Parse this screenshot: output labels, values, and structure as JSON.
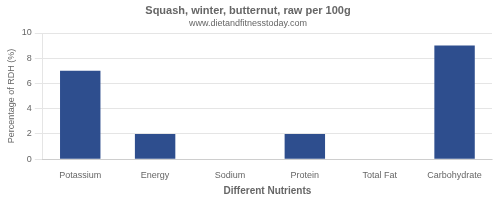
{
  "chart_data": {
    "type": "bar",
    "title": "Squash, winter, butternut, raw per 100g",
    "subtitle": "www.dietandfitnesstoday.com",
    "xlabel": "Different Nutrients",
    "ylabel": "Percentage of RDH (%)",
    "categories": [
      "Potassium",
      "Energy",
      "Sodium",
      "Protein",
      "Total Fat",
      "Carbohydrate"
    ],
    "values": [
      7,
      2,
      0,
      2,
      0,
      9
    ],
    "color": "#2e4e8e",
    "ylim": [
      0,
      10
    ],
    "yticks": [
      0,
      2,
      4,
      6,
      8,
      10
    ],
    "grid": true
  }
}
